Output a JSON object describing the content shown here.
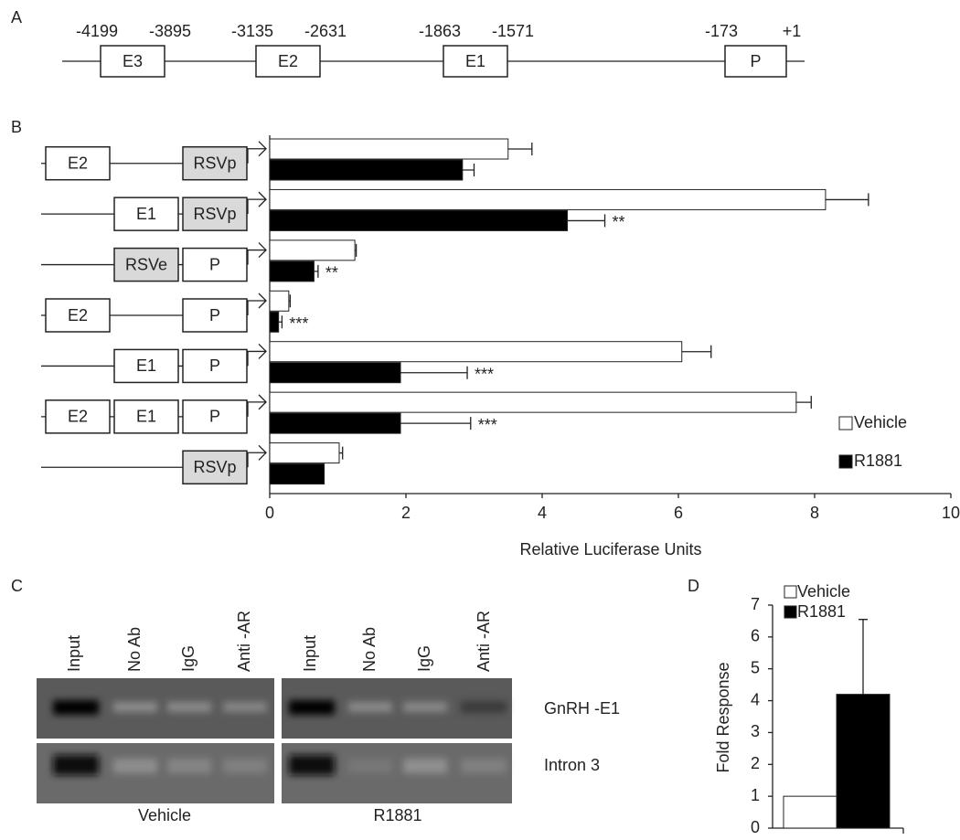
{
  "panel_a": {
    "label": "A",
    "elements": [
      {
        "name": "E3",
        "start": "-4199",
        "end": "-3895"
      },
      {
        "name": "E2",
        "start": "-3135",
        "end": "-2631"
      },
      {
        "name": "E1",
        "start": "-1863",
        "end": "-1571"
      },
      {
        "name": "P",
        "start": "-173",
        "end": "+1"
      }
    ]
  },
  "panel_c": {
    "label": "C",
    "lanes": [
      "Input",
      "No Ab",
      "IgG",
      "Anti -AR",
      "Input",
      "No Ab",
      "IgG",
      "Anti -AR"
    ],
    "rows": [
      "GnRH -E1",
      "Intron 3"
    ],
    "groups": [
      "Vehicle",
      "R1881"
    ]
  },
  "chart_data": [
    {
      "type": "barh",
      "panel": "B",
      "x_label": "Relative  Luciferase Units",
      "categories": [
        [
          "E2",
          null,
          "RSVp"
        ],
        [
          null,
          "E1",
          "RSVp"
        ],
        [
          null,
          "RSVe",
          "P"
        ],
        [
          "E2",
          null,
          "P"
        ],
        [
          null,
          "E1",
          "P"
        ],
        [
          "E2",
          "E1",
          "P"
        ],
        [
          null,
          null,
          "RSVp"
        ]
      ],
      "series": [
        {
          "name": "Vehicle",
          "color": "#ffffff",
          "values": [
            3.5,
            8.16,
            1.25,
            0.28,
            6.05,
            7.73,
            1.02
          ],
          "errors": [
            0.35,
            0.63,
            0.02,
            0.02,
            0.43,
            0.22,
            0.05
          ],
          "annotations": [
            null,
            null,
            null,
            null,
            null,
            null,
            null
          ]
        },
        {
          "name": "R1881",
          "color": "#000000",
          "values": [
            2.83,
            4.37,
            0.65,
            0.13,
            1.92,
            1.92,
            0.8
          ],
          "errors": [
            0.17,
            0.55,
            0.06,
            0.05,
            0.98,
            1.03,
            null
          ],
          "annotations": [
            null,
            "**",
            "**",
            "***",
            "***",
            "***",
            null
          ]
        }
      ],
      "xlim": [
        0,
        10
      ],
      "xticks": [
        0,
        2,
        4,
        6,
        8,
        10
      ],
      "legend": "right"
    },
    {
      "type": "bar",
      "panel": "D",
      "y_label": "Fold Response",
      "categories": [
        null
      ],
      "series": [
        {
          "name": "Vehicle",
          "color": "#ffffff",
          "values": [
            1
          ],
          "errors": [
            null
          ]
        },
        {
          "name": "R1881",
          "color": "#000000",
          "values": [
            4.2
          ],
          "errors": [
            2.35
          ]
        }
      ],
      "ylim": [
        0,
        7
      ],
      "yticks": [
        0,
        1,
        2,
        3,
        4,
        5,
        6,
        7
      ],
      "legend": "top"
    }
  ]
}
